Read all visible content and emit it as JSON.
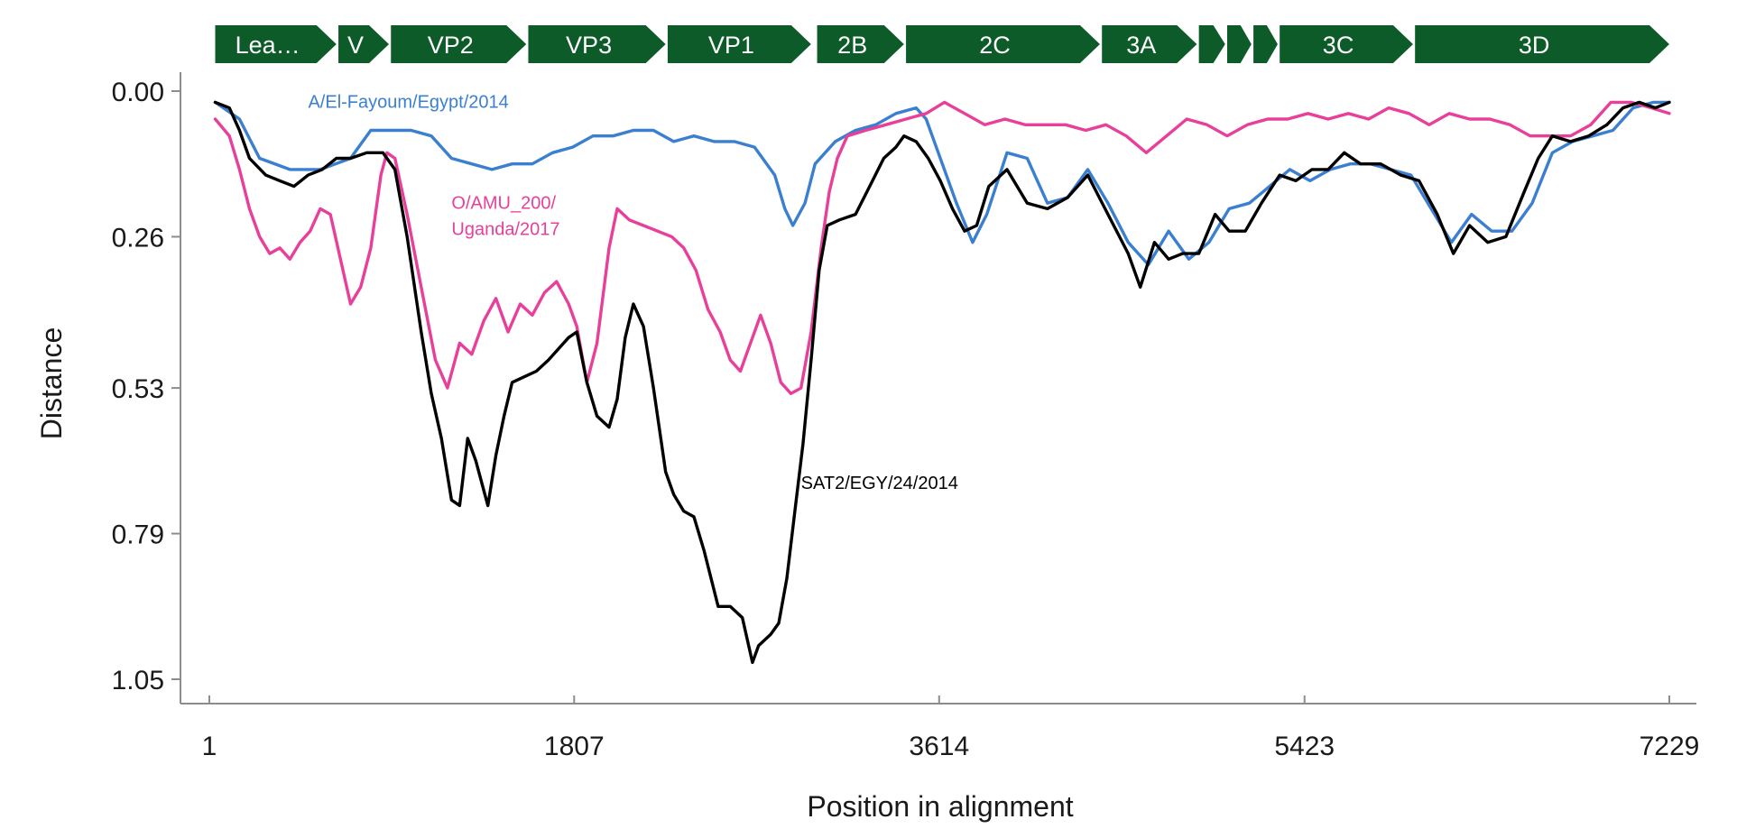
{
  "chart_data": {
    "type": "line",
    "title": "",
    "xlabel": "Position in alignment",
    "ylabel": "Distance",
    "xlim": [
      1,
      7229
    ],
    "ylim": [
      0,
      1.05
    ],
    "y_inverted": true,
    "grid": false,
    "x_ticks": [
      1,
      1807,
      3614,
      5423,
      7229
    ],
    "x_tick_labels": [
      "1",
      "1807",
      "3614",
      "5423",
      "7229"
    ],
    "y_ticks": [
      0,
      0.26,
      0.53,
      0.79,
      1.05
    ],
    "y_tick_labels": [
      "0.00",
      "0.26",
      "0.53",
      "0.79",
      "1.05"
    ],
    "genome_map": {
      "color": "#0e5b2a",
      "genes": [
        {
          "label": "Lea…",
          "start": 30,
          "end": 630
        },
        {
          "label": "V",
          "start": 640,
          "end": 890
        },
        {
          "label": "VP2",
          "start": 900,
          "end": 1570
        },
        {
          "label": "VP3",
          "start": 1580,
          "end": 2260
        },
        {
          "label": "VP1",
          "start": 2270,
          "end": 2980
        },
        {
          "label": "2B",
          "start": 3010,
          "end": 3440
        },
        {
          "label": "2C",
          "start": 3450,
          "end": 4410
        },
        {
          "label": "3A",
          "start": 4420,
          "end": 4890
        },
        {
          "label": "",
          "start": 4900,
          "end": 5030
        },
        {
          "label": "",
          "start": 5040,
          "end": 5160
        },
        {
          "label": "",
          "start": 5170,
          "end": 5290
        },
        {
          "label": "3C",
          "start": 5300,
          "end": 5960
        },
        {
          "label": "3D",
          "start": 5970,
          "end": 7229
        }
      ]
    },
    "series": [
      {
        "name": "A/El-Fayoum/Egypt/2014",
        "color": "#3b7fd0",
        "label_at": [
          490,
          0.03
        ],
        "points": [
          [
            30,
            0.02
          ],
          [
            150,
            0.05
          ],
          [
            250,
            0.12
          ],
          [
            400,
            0.14
          ],
          [
            550,
            0.14
          ],
          [
            700,
            0.12
          ],
          [
            800,
            0.07
          ],
          [
            900,
            0.07
          ],
          [
            1000,
            0.07
          ],
          [
            1100,
            0.08
          ],
          [
            1200,
            0.12
          ],
          [
            1300,
            0.13
          ],
          [
            1400,
            0.14
          ],
          [
            1500,
            0.13
          ],
          [
            1600,
            0.13
          ],
          [
            1700,
            0.11
          ],
          [
            1800,
            0.1
          ],
          [
            1900,
            0.08
          ],
          [
            2000,
            0.08
          ],
          [
            2100,
            0.07
          ],
          [
            2200,
            0.07
          ],
          [
            2300,
            0.09
          ],
          [
            2400,
            0.08
          ],
          [
            2500,
            0.09
          ],
          [
            2600,
            0.09
          ],
          [
            2700,
            0.1
          ],
          [
            2800,
            0.15
          ],
          [
            2850,
            0.21
          ],
          [
            2890,
            0.24
          ],
          [
            2950,
            0.2
          ],
          [
            3000,
            0.13
          ],
          [
            3100,
            0.09
          ],
          [
            3200,
            0.07
          ],
          [
            3300,
            0.06
          ],
          [
            3400,
            0.04
          ],
          [
            3500,
            0.03
          ],
          [
            3550,
            0.05
          ],
          [
            3600,
            0.1
          ],
          [
            3700,
            0.2
          ],
          [
            3780,
            0.27
          ],
          [
            3850,
            0.22
          ],
          [
            3950,
            0.11
          ],
          [
            4050,
            0.12
          ],
          [
            4150,
            0.2
          ],
          [
            4250,
            0.19
          ],
          [
            4350,
            0.14
          ],
          [
            4450,
            0.2
          ],
          [
            4550,
            0.27
          ],
          [
            4650,
            0.31
          ],
          [
            4750,
            0.25
          ],
          [
            4850,
            0.3
          ],
          [
            4950,
            0.27
          ],
          [
            5050,
            0.21
          ],
          [
            5150,
            0.2
          ],
          [
            5250,
            0.17
          ],
          [
            5350,
            0.14
          ],
          [
            5450,
            0.16
          ],
          [
            5550,
            0.14
          ],
          [
            5650,
            0.13
          ],
          [
            5750,
            0.13
          ],
          [
            5850,
            0.14
          ],
          [
            5950,
            0.15
          ],
          [
            6050,
            0.21
          ],
          [
            6150,
            0.27
          ],
          [
            6250,
            0.22
          ],
          [
            6350,
            0.25
          ],
          [
            6450,
            0.25
          ],
          [
            6550,
            0.2
          ],
          [
            6650,
            0.11
          ],
          [
            6750,
            0.09
          ],
          [
            6850,
            0.08
          ],
          [
            6950,
            0.07
          ],
          [
            7050,
            0.03
          ],
          [
            7150,
            0.02
          ],
          [
            7229,
            0.02
          ]
        ]
      },
      {
        "name": "O/AMU_200/\nUganda/2017",
        "color": "#e8409a",
        "label_at": [
          1200,
          0.21
        ],
        "points": [
          [
            30,
            0.05
          ],
          [
            100,
            0.08
          ],
          [
            150,
            0.14
          ],
          [
            200,
            0.21
          ],
          [
            250,
            0.26
          ],
          [
            300,
            0.29
          ],
          [
            350,
            0.28
          ],
          [
            400,
            0.3
          ],
          [
            450,
            0.27
          ],
          [
            500,
            0.25
          ],
          [
            550,
            0.21
          ],
          [
            600,
            0.22
          ],
          [
            650,
            0.3
          ],
          [
            700,
            0.38
          ],
          [
            750,
            0.35
          ],
          [
            800,
            0.28
          ],
          [
            850,
            0.15
          ],
          [
            880,
            0.11
          ],
          [
            920,
            0.12
          ],
          [
            980,
            0.22
          ],
          [
            1050,
            0.35
          ],
          [
            1120,
            0.48
          ],
          [
            1180,
            0.53
          ],
          [
            1240,
            0.45
          ],
          [
            1300,
            0.47
          ],
          [
            1360,
            0.41
          ],
          [
            1420,
            0.37
          ],
          [
            1480,
            0.43
          ],
          [
            1540,
            0.38
          ],
          [
            1600,
            0.4
          ],
          [
            1660,
            0.36
          ],
          [
            1720,
            0.34
          ],
          [
            1780,
            0.38
          ],
          [
            1820,
            0.42
          ],
          [
            1870,
            0.52
          ],
          [
            1920,
            0.45
          ],
          [
            1980,
            0.28
          ],
          [
            2020,
            0.21
          ],
          [
            2080,
            0.23
          ],
          [
            2150,
            0.24
          ],
          [
            2220,
            0.25
          ],
          [
            2290,
            0.26
          ],
          [
            2350,
            0.28
          ],
          [
            2410,
            0.32
          ],
          [
            2470,
            0.39
          ],
          [
            2530,
            0.43
          ],
          [
            2580,
            0.48
          ],
          [
            2630,
            0.5
          ],
          [
            2680,
            0.45
          ],
          [
            2730,
            0.4
          ],
          [
            2780,
            0.45
          ],
          [
            2830,
            0.52
          ],
          [
            2880,
            0.54
          ],
          [
            2930,
            0.53
          ],
          [
            2980,
            0.43
          ],
          [
            3030,
            0.28
          ],
          [
            3070,
            0.18
          ],
          [
            3110,
            0.12
          ],
          [
            3160,
            0.08
          ],
          [
            3250,
            0.07
          ],
          [
            3350,
            0.06
          ],
          [
            3450,
            0.05
          ],
          [
            3550,
            0.04
          ],
          [
            3640,
            0.02
          ],
          [
            3740,
            0.04
          ],
          [
            3840,
            0.06
          ],
          [
            3940,
            0.05
          ],
          [
            4040,
            0.06
          ],
          [
            4140,
            0.06
          ],
          [
            4240,
            0.06
          ],
          [
            4340,
            0.07
          ],
          [
            4440,
            0.06
          ],
          [
            4540,
            0.08
          ],
          [
            4640,
            0.11
          ],
          [
            4740,
            0.08
          ],
          [
            4840,
            0.05
          ],
          [
            4940,
            0.06
          ],
          [
            5040,
            0.08
          ],
          [
            5140,
            0.06
          ],
          [
            5240,
            0.05
          ],
          [
            5340,
            0.05
          ],
          [
            5440,
            0.04
          ],
          [
            5540,
            0.05
          ],
          [
            5640,
            0.04
          ],
          [
            5740,
            0.05
          ],
          [
            5840,
            0.03
          ],
          [
            5940,
            0.04
          ],
          [
            6040,
            0.06
          ],
          [
            6140,
            0.04
          ],
          [
            6240,
            0.05
          ],
          [
            6340,
            0.05
          ],
          [
            6440,
            0.06
          ],
          [
            6540,
            0.08
          ],
          [
            6640,
            0.08
          ],
          [
            6740,
            0.08
          ],
          [
            6840,
            0.06
          ],
          [
            6940,
            0.02
          ],
          [
            7040,
            0.02
          ],
          [
            7140,
            0.03
          ],
          [
            7229,
            0.04
          ]
        ]
      },
      {
        "name": "SAT2/EGY/24/2014",
        "color": "#000000",
        "label_at": [
          2930,
          0.71
        ],
        "points": [
          [
            30,
            0.02
          ],
          [
            100,
            0.03
          ],
          [
            150,
            0.07
          ],
          [
            200,
            0.12
          ],
          [
            280,
            0.15
          ],
          [
            350,
            0.16
          ],
          [
            420,
            0.17
          ],
          [
            490,
            0.15
          ],
          [
            560,
            0.14
          ],
          [
            630,
            0.12
          ],
          [
            700,
            0.12
          ],
          [
            780,
            0.11
          ],
          [
            860,
            0.11
          ],
          [
            920,
            0.14
          ],
          [
            980,
            0.26
          ],
          [
            1050,
            0.43
          ],
          [
            1100,
            0.54
          ],
          [
            1150,
            0.62
          ],
          [
            1200,
            0.73
          ],
          [
            1240,
            0.74
          ],
          [
            1280,
            0.62
          ],
          [
            1320,
            0.66
          ],
          [
            1380,
            0.74
          ],
          [
            1420,
            0.65
          ],
          [
            1460,
            0.58
          ],
          [
            1500,
            0.52
          ],
          [
            1560,
            0.51
          ],
          [
            1620,
            0.5
          ],
          [
            1680,
            0.48
          ],
          [
            1730,
            0.46
          ],
          [
            1780,
            0.44
          ],
          [
            1820,
            0.43
          ],
          [
            1870,
            0.52
          ],
          [
            1920,
            0.58
          ],
          [
            1980,
            0.6
          ],
          [
            2020,
            0.55
          ],
          [
            2060,
            0.44
          ],
          [
            2100,
            0.38
          ],
          [
            2150,
            0.42
          ],
          [
            2200,
            0.53
          ],
          [
            2260,
            0.68
          ],
          [
            2300,
            0.72
          ],
          [
            2350,
            0.75
          ],
          [
            2400,
            0.76
          ],
          [
            2450,
            0.82
          ],
          [
            2520,
            0.92
          ],
          [
            2580,
            0.92
          ],
          [
            2640,
            0.94
          ],
          [
            2690,
            1.02
          ],
          [
            2720,
            0.99
          ],
          [
            2780,
            0.97
          ],
          [
            2820,
            0.95
          ],
          [
            2860,
            0.87
          ],
          [
            2900,
            0.75
          ],
          [
            2940,
            0.63
          ],
          [
            2980,
            0.48
          ],
          [
            3020,
            0.32
          ],
          [
            3060,
            0.24
          ],
          [
            3120,
            0.23
          ],
          [
            3200,
            0.22
          ],
          [
            3270,
            0.17
          ],
          [
            3340,
            0.12
          ],
          [
            3400,
            0.1
          ],
          [
            3440,
            0.08
          ],
          [
            3500,
            0.09
          ],
          [
            3560,
            0.12
          ],
          [
            3620,
            0.16
          ],
          [
            3680,
            0.21
          ],
          [
            3740,
            0.25
          ],
          [
            3800,
            0.24
          ],
          [
            3860,
            0.17
          ],
          [
            3950,
            0.14
          ],
          [
            4050,
            0.2
          ],
          [
            4150,
            0.21
          ],
          [
            4250,
            0.19
          ],
          [
            4350,
            0.15
          ],
          [
            4450,
            0.22
          ],
          [
            4550,
            0.29
          ],
          [
            4610,
            0.35
          ],
          [
            4680,
            0.27
          ],
          [
            4750,
            0.3
          ],
          [
            4820,
            0.29
          ],
          [
            4900,
            0.29
          ],
          [
            4980,
            0.22
          ],
          [
            5050,
            0.25
          ],
          [
            5130,
            0.25
          ],
          [
            5210,
            0.2
          ],
          [
            5300,
            0.15
          ],
          [
            5380,
            0.16
          ],
          [
            5460,
            0.14
          ],
          [
            5540,
            0.14
          ],
          [
            5620,
            0.11
          ],
          [
            5700,
            0.13
          ],
          [
            5800,
            0.13
          ],
          [
            5900,
            0.15
          ],
          [
            5990,
            0.16
          ],
          [
            6080,
            0.22
          ],
          [
            6160,
            0.29
          ],
          [
            6240,
            0.24
          ],
          [
            6330,
            0.27
          ],
          [
            6420,
            0.26
          ],
          [
            6510,
            0.18
          ],
          [
            6580,
            0.12
          ],
          [
            6650,
            0.08
          ],
          [
            6740,
            0.09
          ],
          [
            6830,
            0.08
          ],
          [
            6920,
            0.06
          ],
          [
            7000,
            0.03
          ],
          [
            7080,
            0.02
          ],
          [
            7160,
            0.03
          ],
          [
            7229,
            0.02
          ]
        ]
      }
    ]
  }
}
